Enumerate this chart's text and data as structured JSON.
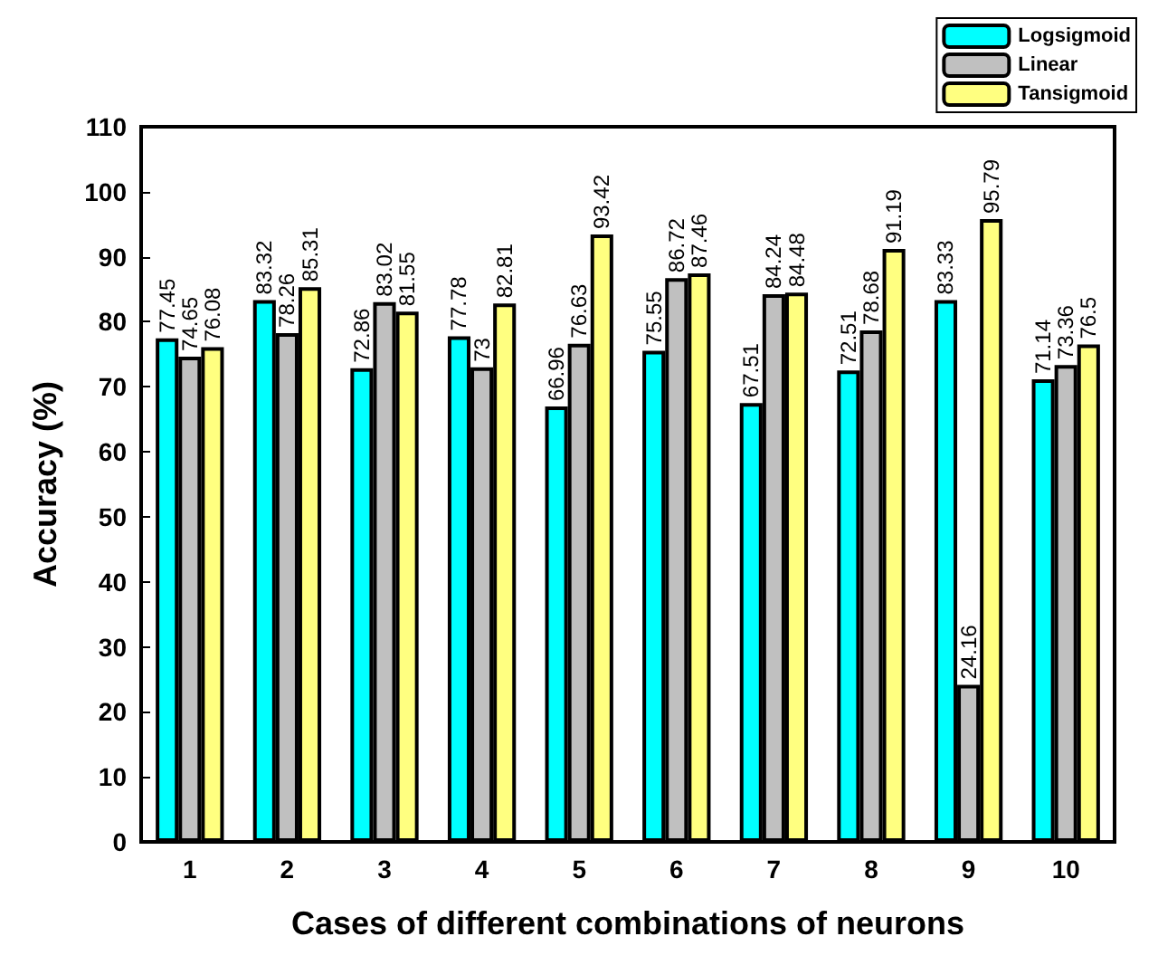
{
  "chart_data": {
    "type": "bar",
    "xlabel": "Cases of different combinations of neurons",
    "ylabel": "Accuracy (%)",
    "categories": [
      "1",
      "2",
      "3",
      "4",
      "5",
      "6",
      "7",
      "8",
      "9",
      "10"
    ],
    "series": [
      {
        "name": "Logsigmoid",
        "color": "#00ffff",
        "values": [
          77.45,
          83.32,
          72.86,
          77.78,
          66.96,
          75.55,
          67.51,
          72.51,
          83.33,
          71.14
        ]
      },
      {
        "name": "Linear",
        "color": "#c0c0c0",
        "values": [
          74.65,
          78.26,
          83.02,
          73,
          76.63,
          86.72,
          84.24,
          78.68,
          24.16,
          73.36
        ]
      },
      {
        "name": "Tansigmoid",
        "color": "#ffff80",
        "values": [
          76.08,
          85.31,
          81.55,
          82.81,
          93.42,
          87.46,
          84.48,
          91.19,
          95.79,
          76.5
        ]
      }
    ],
    "ylim": [
      0,
      110
    ],
    "yticks": [
      0,
      10,
      20,
      30,
      40,
      50,
      60,
      70,
      80,
      90,
      100,
      110
    ],
    "data_labels": true,
    "legend": "top right",
    "grid": false
  }
}
